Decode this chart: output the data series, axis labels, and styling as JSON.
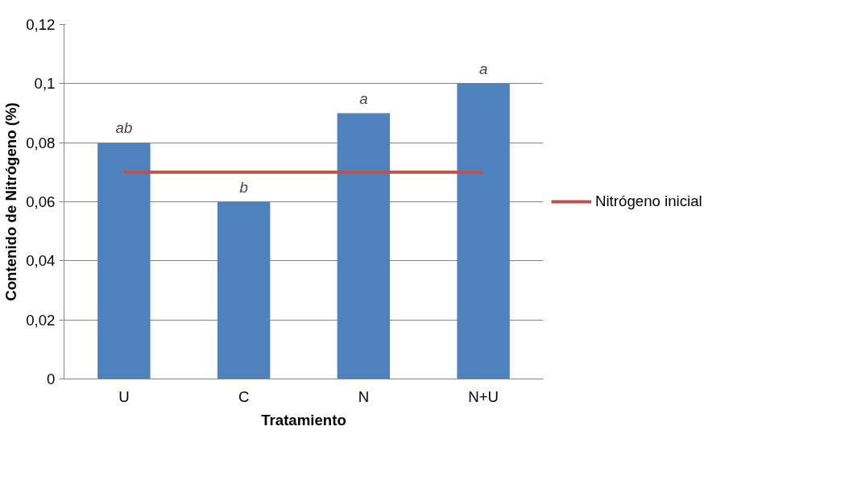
{
  "chart_data": {
    "type": "bar",
    "xlabel": "Tratamiento",
    "ylabel": "Contenido de Nitrógeno (%)",
    "categories": [
      "U",
      "C",
      "N",
      "N+U"
    ],
    "series": [
      {
        "color": "#4f81bd",
        "values": [
          0.08,
          0.06,
          0.09,
          0.1
        ]
      },
      {
        "type": "line",
        "name": "Nitrógeno inicial",
        "color": "#c0504d",
        "values": [
          0.07,
          0.07,
          0.07,
          0.07
        ]
      }
    ],
    "ylim": [
      0,
      0.12
    ],
    "yticks": [
      0,
      {
        "value": 0.02,
        "label": "0,02"
      },
      {
        "value": 0.04,
        "label": "0,04"
      },
      {
        "value": 0.06,
        "label": "0,06"
      },
      {
        "value": 0.08,
        "label": "0,08"
      },
      {
        "value": 0.1,
        "label": "0,1"
      },
      {
        "value": 0.12,
        "label": "0,12"
      }
    ],
    "grid": "y",
    "legend": "right",
    "annotations": [
      {
        "text": "ab",
        "x": "U",
        "y": 0.08
      },
      {
        "text": "b",
        "x": "C",
        "y": 0.06
      },
      {
        "text": "a",
        "x": "N",
        "y": 0.09
      },
      {
        "text": "a",
        "x": "N+U",
        "y": 0.1
      }
    ]
  }
}
